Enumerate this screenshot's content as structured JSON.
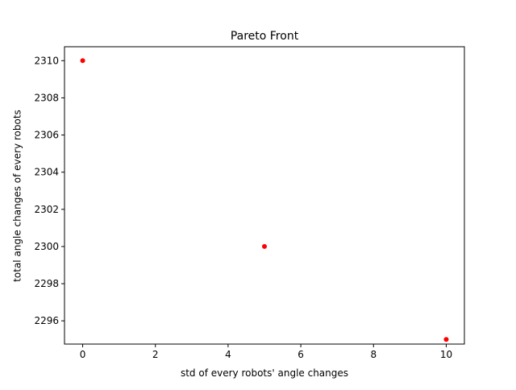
{
  "chart_data": {
    "type": "scatter",
    "title": "Pareto Front",
    "xlabel": "std of every robots' angle changes",
    "ylabel": "total angle changes of every robots",
    "xlim": [
      -0.5,
      10.5
    ],
    "ylim": [
      2294.75,
      2310.75
    ],
    "xticks": [
      0,
      2,
      4,
      6,
      8,
      10
    ],
    "yticks": [
      2296,
      2298,
      2300,
      2302,
      2304,
      2306,
      2308,
      2310
    ],
    "grid": false,
    "series": [
      {
        "color": "#ff0000",
        "points": [
          {
            "x": 0,
            "y": 2310
          },
          {
            "x": 5,
            "y": 2300
          },
          {
            "x": 10,
            "y": 2295
          }
        ]
      }
    ]
  }
}
